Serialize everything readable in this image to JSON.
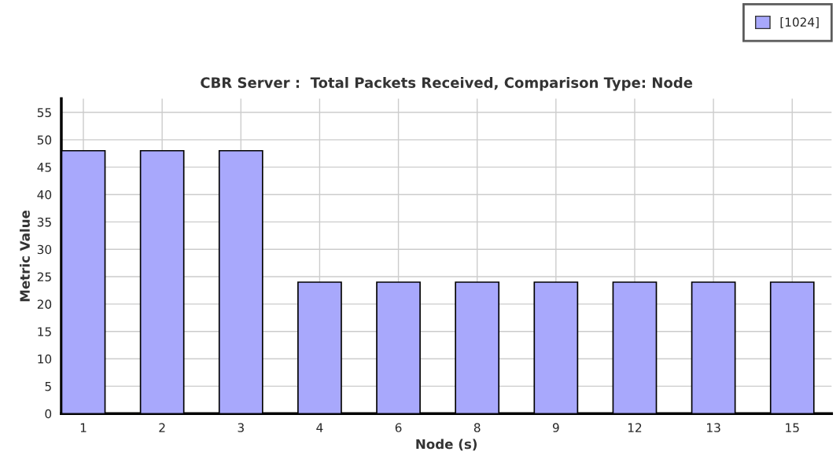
{
  "chart_data": {
    "type": "bar",
    "title": "CBR Server :  Total Packets Received, Comparison Type: Node",
    "xlabel": "Node (s)",
    "ylabel": "Metric Value",
    "categories": [
      "1",
      "2",
      "3",
      "4",
      "6",
      "8",
      "9",
      "12",
      "13",
      "15"
    ],
    "series": [
      {
        "name": "[1024]",
        "color": "#a8a8fc",
        "values": [
          48,
          48,
          48,
          24,
          24,
          24,
          24,
          24,
          24,
          24
        ]
      }
    ],
    "ylim": [
      0,
      57.5
    ],
    "yticks": [
      0,
      5,
      10,
      15,
      20,
      25,
      30,
      35,
      40,
      45,
      50,
      55
    ],
    "grid": true,
    "legend": "top right"
  }
}
